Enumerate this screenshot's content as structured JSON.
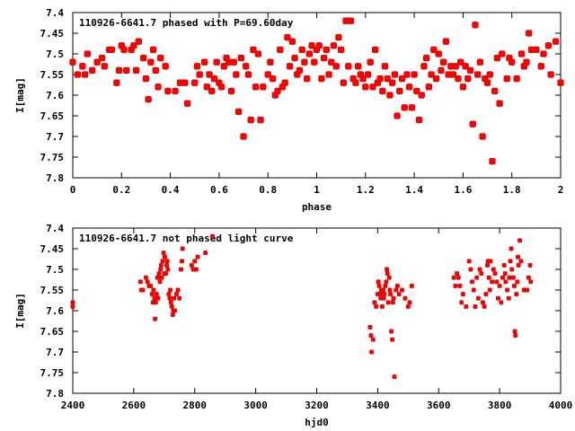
{
  "chart_data": [
    {
      "type": "scatter",
      "title": "110926-6641.7 phased with P=69.60day",
      "xlabel": "phase",
      "ylabel": "I[mag]",
      "xlim": [
        0,
        2
      ],
      "ylim": [
        7.4,
        7.8
      ],
      "y_inverted": true,
      "x_ticks": [
        "0",
        "0.2",
        "0.4",
        "0.6",
        "0.8",
        "1",
        "1.2",
        "1.4",
        "1.6",
        "1.8",
        "2"
      ],
      "y_ticks": [
        "7.4",
        "7.45",
        "7.5",
        "7.55",
        "7.6",
        "7.65",
        "7.7",
        "7.75",
        "7.8"
      ],
      "marker_color": "#ff0000",
      "grid": false,
      "points": [
        [
          0.0,
          7.52
        ],
        [
          0.02,
          7.55
        ],
        [
          0.04,
          7.53
        ],
        [
          0.05,
          7.55
        ],
        [
          0.06,
          7.5
        ],
        [
          0.08,
          7.54
        ],
        [
          0.1,
          7.52
        ],
        [
          0.12,
          7.51
        ],
        [
          0.13,
          7.53
        ],
        [
          0.15,
          7.49
        ],
        [
          0.16,
          7.49
        ],
        [
          0.18,
          7.57
        ],
        [
          0.19,
          7.54
        ],
        [
          0.2,
          7.48
        ],
        [
          0.21,
          7.49
        ],
        [
          0.22,
          7.54
        ],
        [
          0.24,
          7.49
        ],
        [
          0.25,
          7.48
        ],
        [
          0.26,
          7.54
        ],
        [
          0.27,
          7.47
        ],
        [
          0.29,
          7.51
        ],
        [
          0.3,
          7.56
        ],
        [
          0.31,
          7.61
        ],
        [
          0.32,
          7.52
        ],
        [
          0.33,
          7.49
        ],
        [
          0.34,
          7.54
        ],
        [
          0.35,
          7.58
        ],
        [
          0.36,
          7.51
        ],
        [
          0.38,
          7.53
        ],
        [
          0.39,
          7.59
        ],
        [
          0.42,
          7.59
        ],
        [
          0.44,
          7.57
        ],
        [
          0.46,
          7.57
        ],
        [
          0.47,
          7.62
        ],
        [
          0.5,
          7.57
        ],
        [
          0.51,
          7.53
        ],
        [
          0.52,
          7.55
        ],
        [
          0.54,
          7.52
        ],
        [
          0.55,
          7.58
        ],
        [
          0.56,
          7.55
        ],
        [
          0.57,
          7.59
        ],
        [
          0.58,
          7.56
        ],
        [
          0.59,
          7.52
        ],
        [
          0.6,
          7.57
        ],
        [
          0.61,
          7.58
        ],
        [
          0.62,
          7.53
        ],
        [
          0.63,
          7.51
        ],
        [
          0.64,
          7.52
        ],
        [
          0.65,
          7.59
        ],
        [
          0.66,
          7.52
        ],
        [
          0.67,
          7.55
        ],
        [
          0.68,
          7.64
        ],
        [
          0.69,
          7.51
        ],
        [
          0.7,
          7.7
        ],
        [
          0.71,
          7.53
        ],
        [
          0.72,
          7.55
        ],
        [
          0.73,
          7.66
        ],
        [
          0.74,
          7.49
        ],
        [
          0.75,
          7.58
        ],
        [
          0.76,
          7.5
        ],
        [
          0.77,
          7.66
        ],
        [
          0.78,
          7.58
        ],
        [
          0.8,
          7.55
        ],
        [
          0.81,
          7.52
        ],
        [
          0.82,
          7.56
        ],
        [
          0.83,
          7.6
        ],
        [
          0.84,
          7.59
        ],
        [
          0.85,
          7.49
        ],
        [
          0.86,
          7.58
        ],
        [
          0.87,
          7.57
        ],
        [
          0.88,
          7.46
        ],
        [
          0.89,
          7.53
        ],
        [
          0.9,
          7.47
        ],
        [
          0.91,
          7.51
        ],
        [
          0.92,
          7.55
        ],
        [
          0.93,
          7.54
        ],
        [
          0.94,
          7.49
        ],
        [
          0.95,
          7.52
        ],
        [
          0.96,
          7.56
        ],
        [
          0.97,
          7.5
        ],
        [
          0.98,
          7.48
        ],
        [
          0.99,
          7.52
        ],
        [
          1.0,
          7.49
        ],
        [
          1.01,
          7.48
        ],
        [
          1.02,
          7.56
        ],
        [
          1.03,
          7.51
        ],
        [
          1.04,
          7.49
        ],
        [
          1.05,
          7.55
        ],
        [
          1.06,
          7.52
        ],
        [
          1.07,
          7.48
        ],
        [
          1.08,
          7.53
        ],
        [
          1.09,
          7.46
        ],
        [
          1.1,
          7.49
        ],
        [
          1.11,
          7.57
        ],
        [
          1.12,
          7.42
        ],
        [
          1.13,
          7.53
        ],
        [
          1.14,
          7.42
        ],
        [
          1.15,
          7.56
        ],
        [
          1.16,
          7.57
        ],
        [
          1.17,
          7.53
        ],
        [
          1.18,
          7.55
        ],
        [
          1.19,
          7.56
        ],
        [
          1.2,
          7.58
        ],
        [
          1.21,
          7.55
        ],
        [
          1.22,
          7.52
        ],
        [
          1.23,
          7.58
        ],
        [
          1.24,
          7.49
        ],
        [
          1.25,
          7.57
        ],
        [
          1.26,
          7.56
        ],
        [
          1.27,
          7.59
        ],
        [
          1.28,
          7.53
        ],
        [
          1.29,
          7.56
        ],
        [
          1.3,
          7.6
        ],
        [
          1.31,
          7.57
        ],
        [
          1.32,
          7.55
        ],
        [
          1.33,
          7.65
        ],
        [
          1.34,
          7.59
        ],
        [
          1.35,
          7.56
        ],
        [
          1.36,
          7.63
        ],
        [
          1.37,
          7.55
        ],
        [
          1.38,
          7.58
        ],
        [
          1.39,
          7.63
        ],
        [
          1.4,
          7.55
        ],
        [
          1.41,
          7.59
        ],
        [
          1.42,
          7.66
        ],
        [
          1.43,
          7.6
        ],
        [
          1.44,
          7.53
        ],
        [
          1.45,
          7.51
        ],
        [
          1.46,
          7.58
        ],
        [
          1.47,
          7.55
        ],
        [
          1.48,
          7.49
        ],
        [
          1.49,
          7.56
        ],
        [
          1.5,
          7.5
        ],
        [
          1.51,
          7.54
        ],
        [
          1.52,
          7.52
        ],
        [
          1.53,
          7.47
        ],
        [
          1.54,
          7.55
        ],
        [
          1.55,
          7.53
        ],
        [
          1.56,
          7.55
        ],
        [
          1.57,
          7.53
        ],
        [
          1.58,
          7.56
        ],
        [
          1.59,
          7.52
        ],
        [
          1.6,
          7.58
        ],
        [
          1.61,
          7.53
        ],
        [
          1.62,
          7.56
        ],
        [
          1.63,
          7.54
        ],
        [
          1.64,
          7.67
        ],
        [
          1.65,
          7.43
        ],
        [
          1.66,
          7.55
        ],
        [
          1.67,
          7.52
        ],
        [
          1.68,
          7.7
        ],
        [
          1.69,
          7.56
        ],
        [
          1.7,
          7.57
        ],
        [
          1.71,
          7.55
        ],
        [
          1.72,
          7.76
        ],
        [
          1.73,
          7.59
        ],
        [
          1.74,
          7.51
        ],
        [
          1.75,
          7.62
        ],
        [
          1.76,
          7.5
        ],
        [
          1.78,
          7.56
        ],
        [
          1.79,
          7.51
        ],
        [
          1.8,
          7.52
        ],
        [
          1.82,
          7.56
        ],
        [
          1.84,
          7.5
        ],
        [
          1.85,
          7.53
        ],
        [
          1.86,
          7.52
        ],
        [
          1.87,
          7.45
        ],
        [
          1.88,
          7.49
        ],
        [
          1.9,
          7.49
        ],
        [
          1.92,
          7.53
        ],
        [
          1.93,
          7.5
        ],
        [
          1.95,
          7.48
        ],
        [
          1.96,
          7.55
        ],
        [
          1.98,
          7.47
        ],
        [
          2.0,
          7.57
        ]
      ]
    },
    {
      "type": "scatter",
      "title": "110926-6641.7 not phased light curve",
      "xlabel": "hjd0",
      "ylabel": "I[mag]",
      "xlim": [
        2400,
        4000
      ],
      "ylim": [
        7.4,
        7.8
      ],
      "y_inverted": true,
      "x_ticks": [
        "2400",
        "2600",
        "2800",
        "3000",
        "3200",
        "3400",
        "3600",
        "3800",
        "4000"
      ],
      "y_ticks": [
        "7.4",
        "7.45",
        "7.5",
        "7.55",
        "7.6",
        "7.65",
        "7.7",
        "7.75",
        "7.8"
      ],
      "marker_color": "#ff0000",
      "grid": false,
      "points": [
        [
          2400,
          7.58
        ],
        [
          2400,
          7.59
        ],
        [
          2622,
          7.53
        ],
        [
          2625,
          7.55
        ],
        [
          2630,
          7.55
        ],
        [
          2640,
          7.52
        ],
        [
          2645,
          7.53
        ],
        [
          2650,
          7.54
        ],
        [
          2655,
          7.54
        ],
        [
          2660,
          7.56
        ],
        [
          2663,
          7.58
        ],
        [
          2665,
          7.55
        ],
        [
          2668,
          7.57
        ],
        [
          2670,
          7.62
        ],
        [
          2672,
          7.58
        ],
        [
          2675,
          7.56
        ],
        [
          2678,
          7.52
        ],
        [
          2680,
          7.57
        ],
        [
          2683,
          7.51
        ],
        [
          2686,
          7.53
        ],
        [
          2688,
          7.5
        ],
        [
          2690,
          7.49
        ],
        [
          2692,
          7.52
        ],
        [
          2695,
          7.48
        ],
        [
          2698,
          7.46
        ],
        [
          2700,
          7.51
        ],
        [
          2702,
          7.47
        ],
        [
          2705,
          7.51
        ],
        [
          2708,
          7.49
        ],
        [
          2710,
          7.48
        ],
        [
          2712,
          7.5
        ],
        [
          2715,
          7.56
        ],
        [
          2718,
          7.57
        ],
        [
          2720,
          7.55
        ],
        [
          2722,
          7.58
        ],
        [
          2725,
          7.59
        ],
        [
          2728,
          7.61
        ],
        [
          2730,
          7.6
        ],
        [
          2732,
          7.57
        ],
        [
          2735,
          7.6
        ],
        [
          2740,
          7.56
        ],
        [
          2745,
          7.55
        ],
        [
          2750,
          7.57
        ],
        [
          2755,
          7.5
        ],
        [
          2758,
          7.48
        ],
        [
          2760,
          7.45
        ],
        [
          2790,
          7.49
        ],
        [
          2795,
          7.5
        ],
        [
          2800,
          7.48
        ],
        [
          2805,
          7.5
        ],
        [
          2810,
          7.47
        ],
        [
          2835,
          7.46
        ],
        [
          2858,
          7.42
        ],
        [
          3375,
          7.64
        ],
        [
          3378,
          7.66
        ],
        [
          3380,
          7.7
        ],
        [
          3385,
          7.67
        ],
        [
          3390,
          7.58
        ],
        [
          3395,
          7.59
        ],
        [
          3400,
          7.56
        ],
        [
          3402,
          7.53
        ],
        [
          3405,
          7.54
        ],
        [
          3408,
          7.56
        ],
        [
          3410,
          7.57
        ],
        [
          3412,
          7.55
        ],
        [
          3415,
          7.59
        ],
        [
          3418,
          7.55
        ],
        [
          3420,
          7.57
        ],
        [
          3422,
          7.56
        ],
        [
          3425,
          7.54
        ],
        [
          3428,
          7.53
        ],
        [
          3430,
          7.5
        ],
        [
          3432,
          7.51
        ],
        [
          3435,
          7.58
        ],
        [
          3438,
          7.52
        ],
        [
          3440,
          7.55
        ],
        [
          3442,
          7.56
        ],
        [
          3445,
          7.65
        ],
        [
          3448,
          7.67
        ],
        [
          3450,
          7.58
        ],
        [
          3452,
          7.57
        ],
        [
          3455,
          7.76
        ],
        [
          3460,
          7.55
        ],
        [
          3465,
          7.54
        ],
        [
          3470,
          7.56
        ],
        [
          3480,
          7.55
        ],
        [
          3490,
          7.57
        ],
        [
          3500,
          7.59
        ],
        [
          3505,
          7.58
        ],
        [
          3512,
          7.54
        ],
        [
          3650,
          7.52
        ],
        [
          3655,
          7.54
        ],
        [
          3660,
          7.51
        ],
        [
          3665,
          7.52
        ],
        [
          3670,
          7.54
        ],
        [
          3675,
          7.58
        ],
        [
          3680,
          7.56
        ],
        [
          3690,
          7.59
        ],
        [
          3700,
          7.48
        ],
        [
          3705,
          7.5
        ],
        [
          3710,
          7.53
        ],
        [
          3715,
          7.55
        ],
        [
          3720,
          7.59
        ],
        [
          3725,
          7.52
        ],
        [
          3730,
          7.57
        ],
        [
          3735,
          7.5
        ],
        [
          3740,
          7.51
        ],
        [
          3745,
          7.58
        ],
        [
          3750,
          7.59
        ],
        [
          3755,
          7.56
        ],
        [
          3760,
          7.49
        ],
        [
          3762,
          7.48
        ],
        [
          3765,
          7.52
        ],
        [
          3768,
          7.55
        ],
        [
          3770,
          7.48
        ],
        [
          3775,
          7.53
        ],
        [
          3780,
          7.5
        ],
        [
          3785,
          7.51
        ],
        [
          3790,
          7.53
        ],
        [
          3795,
          7.57
        ],
        [
          3800,
          7.54
        ],
        [
          3805,
          7.58
        ],
        [
          3810,
          7.52
        ],
        [
          3815,
          7.49
        ],
        [
          3818,
          7.51
        ],
        [
          3820,
          7.53
        ],
        [
          3825,
          7.55
        ],
        [
          3830,
          7.57
        ],
        [
          3832,
          7.52
        ],
        [
          3835,
          7.48
        ],
        [
          3838,
          7.45
        ],
        [
          3840,
          7.5
        ],
        [
          3845,
          7.52
        ],
        [
          3848,
          7.54
        ],
        [
          3850,
          7.65
        ],
        [
          3852,
          7.66
        ],
        [
          3855,
          7.56
        ],
        [
          3858,
          7.53
        ],
        [
          3860,
          7.47
        ],
        [
          3862,
          7.49
        ],
        [
          3866,
          7.43
        ],
        [
          3870,
          7.48
        ],
        [
          3880,
          7.55
        ],
        [
          3890,
          7.55
        ],
        [
          3895,
          7.52
        ],
        [
          3900,
          7.49
        ],
        [
          3902,
          7.53
        ]
      ]
    }
  ]
}
